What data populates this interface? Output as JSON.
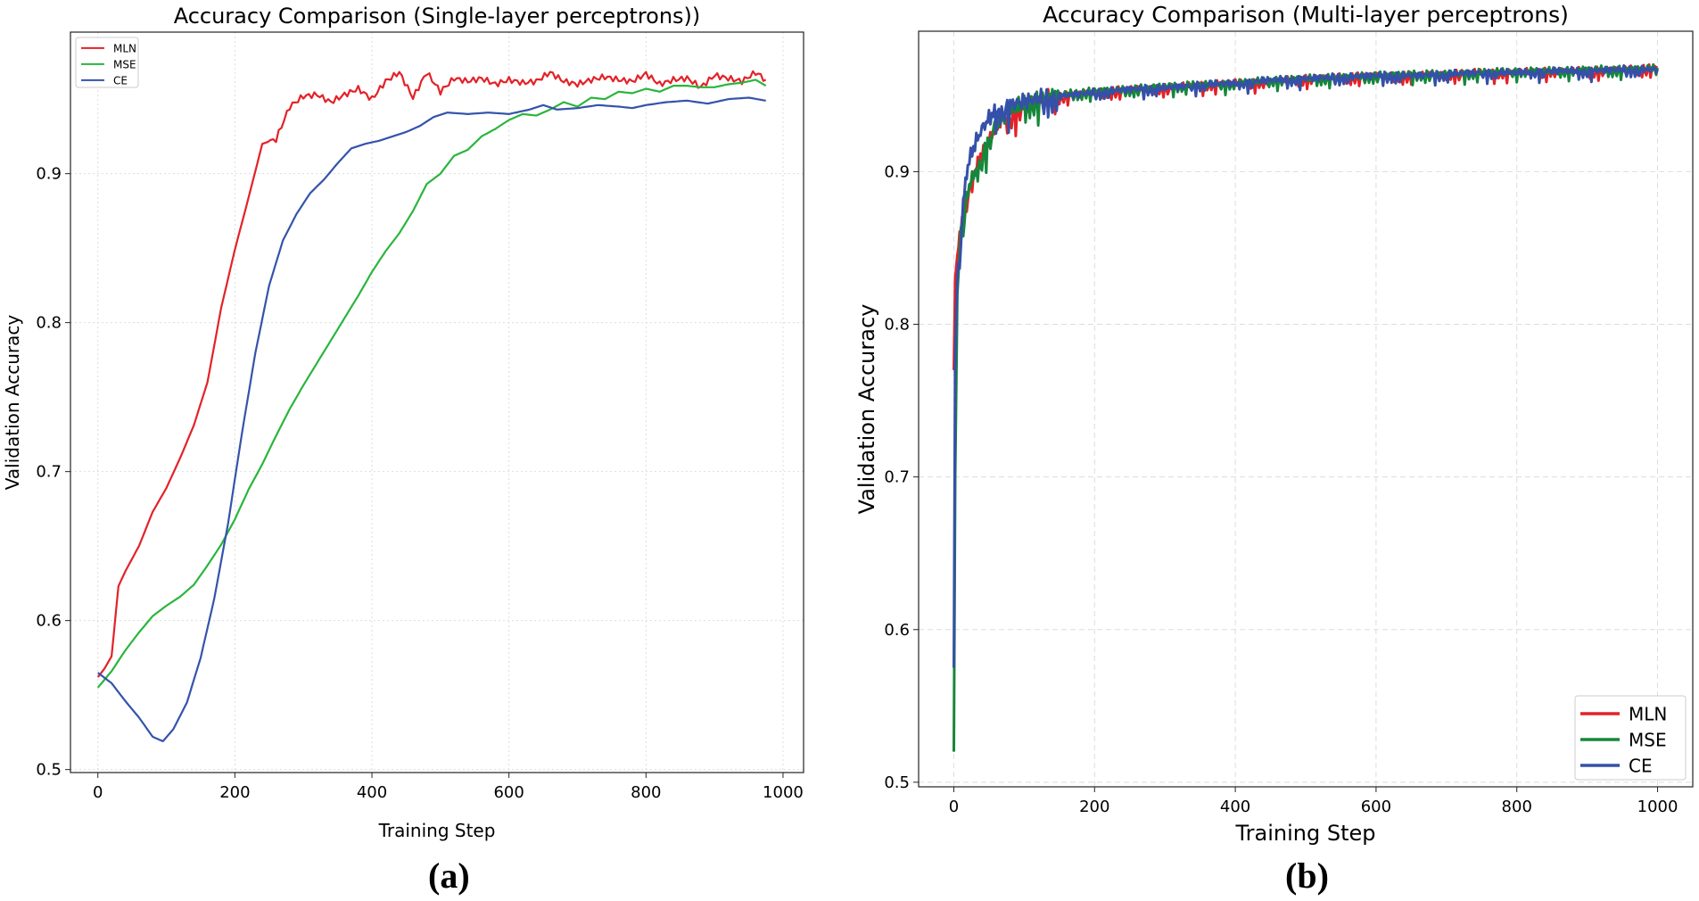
{
  "captions": {
    "a": "(a)",
    "b": "(b)"
  },
  "chart_data": [
    {
      "type": "line",
      "title": "Accuracy Comparison (Single-layer perceptrons))",
      "xlabel": "Training Step",
      "ylabel": "Validation Accuracy",
      "xlim": [
        -40,
        1030
      ],
      "ylim": [
        0.498,
        0.995
      ],
      "xticks": [
        0,
        200,
        400,
        600,
        800,
        1000
      ],
      "yticks": [
        0.5,
        0.6,
        0.7,
        0.8,
        0.9
      ],
      "grid": true,
      "legend_position": "top-left",
      "series": [
        {
          "name": "MLN",
          "color": "#e32228",
          "x": [
            0,
            10,
            20,
            30,
            40,
            60,
            80,
            100,
            120,
            140,
            160,
            180,
            200,
            220,
            240,
            260,
            280,
            300,
            320,
            340,
            360,
            380,
            400,
            420,
            440,
            460,
            480,
            500,
            520,
            540,
            560,
            580,
            600,
            620,
            640,
            660,
            680,
            700,
            720,
            740,
            760,
            780,
            800,
            820,
            840,
            860,
            880,
            900,
            920,
            940,
            960,
            975
          ],
          "y": [
            0.562,
            0.568,
            0.576,
            0.623,
            0.633,
            0.65,
            0.673,
            0.689,
            0.709,
            0.731,
            0.76,
            0.81,
            0.849,
            0.884,
            0.92,
            0.923,
            0.945,
            0.952,
            0.953,
            0.948,
            0.953,
            0.957,
            0.95,
            0.962,
            0.968,
            0.951,
            0.968,
            0.955,
            0.964,
            0.962,
            0.964,
            0.96,
            0.963,
            0.961,
            0.962,
            0.968,
            0.962,
            0.96,
            0.963,
            0.965,
            0.963,
            0.962,
            0.967,
            0.96,
            0.963,
            0.964,
            0.958,
            0.966,
            0.964,
            0.962,
            0.968,
            0.963
          ]
        },
        {
          "name": "MSE",
          "color": "#2ab53c",
          "x": [
            0,
            20,
            40,
            60,
            80,
            100,
            120,
            140,
            160,
            180,
            200,
            220,
            240,
            260,
            280,
            300,
            320,
            340,
            360,
            380,
            400,
            420,
            440,
            460,
            480,
            500,
            520,
            540,
            560,
            580,
            600,
            620,
            640,
            660,
            680,
            700,
            720,
            740,
            760,
            780,
            800,
            820,
            840,
            860,
            880,
            900,
            920,
            940,
            960,
            975
          ],
          "y": [
            0.555,
            0.566,
            0.58,
            0.592,
            0.603,
            0.61,
            0.616,
            0.624,
            0.637,
            0.651,
            0.668,
            0.688,
            0.705,
            0.724,
            0.742,
            0.758,
            0.773,
            0.788,
            0.803,
            0.818,
            0.834,
            0.848,
            0.86,
            0.875,
            0.893,
            0.9,
            0.912,
            0.916,
            0.925,
            0.93,
            0.936,
            0.94,
            0.939,
            0.943,
            0.948,
            0.945,
            0.951,
            0.95,
            0.955,
            0.954,
            0.957,
            0.955,
            0.959,
            0.959,
            0.958,
            0.958,
            0.96,
            0.961,
            0.963,
            0.959
          ]
        },
        {
          "name": "CE",
          "color": "#3553ab",
          "x": [
            0,
            20,
            40,
            60,
            80,
            95,
            110,
            130,
            150,
            170,
            190,
            210,
            230,
            250,
            270,
            290,
            310,
            330,
            350,
            370,
            390,
            410,
            430,
            450,
            470,
            490,
            510,
            540,
            570,
            600,
            630,
            650,
            670,
            700,
            730,
            760,
            780,
            800,
            830,
            860,
            890,
            920,
            950,
            975
          ],
          "y": [
            0.565,
            0.558,
            0.546,
            0.535,
            0.522,
            0.519,
            0.527,
            0.545,
            0.575,
            0.615,
            0.665,
            0.725,
            0.78,
            0.825,
            0.855,
            0.873,
            0.887,
            0.896,
            0.907,
            0.917,
            0.92,
            0.922,
            0.925,
            0.928,
            0.932,
            0.938,
            0.941,
            0.94,
            0.941,
            0.94,
            0.943,
            0.946,
            0.943,
            0.944,
            0.946,
            0.945,
            0.944,
            0.946,
            0.948,
            0.949,
            0.947,
            0.95,
            0.951,
            0.949
          ]
        }
      ]
    },
    {
      "type": "line",
      "title": "Accuracy Comparison (Multi-layer perceptrons)",
      "xlabel": "Training Step",
      "ylabel": "Validation Accuracy",
      "xlim": [
        -50,
        1050
      ],
      "ylim": [
        0.497,
        0.992
      ],
      "xticks": [
        0,
        200,
        400,
        600,
        800,
        1000
      ],
      "yticks": [
        0.5,
        0.6,
        0.7,
        0.8,
        0.9
      ],
      "grid": true,
      "legend_position": "bottom-right",
      "series": [
        {
          "name": "MLN",
          "color": "#e32228",
          "x": [
            0,
            2,
            5,
            10,
            15,
            20,
            30,
            40,
            50,
            60,
            80,
            100,
            130,
            160,
            200,
            250,
            300,
            350,
            400,
            450,
            500,
            550,
            600,
            650,
            700,
            750,
            800,
            850,
            900,
            950,
            1000
          ],
          "y": [
            0.77,
            0.83,
            0.845,
            0.86,
            0.875,
            0.89,
            0.9,
            0.912,
            0.92,
            0.93,
            0.938,
            0.944,
            0.948,
            0.95,
            0.952,
            0.954,
            0.955,
            0.957,
            0.958,
            0.959,
            0.961,
            0.962,
            0.963,
            0.963,
            0.964,
            0.965,
            0.965,
            0.966,
            0.966,
            0.967,
            0.968
          ]
        },
        {
          "name": "MSE",
          "color": "#16873a",
          "x": [
            0,
            2,
            5,
            10,
            15,
            20,
            30,
            40,
            50,
            60,
            80,
            100,
            130,
            160,
            200,
            250,
            300,
            350,
            400,
            450,
            500,
            550,
            600,
            650,
            700,
            750,
            800,
            850,
            900,
            950,
            1000
          ],
          "y": [
            0.52,
            0.7,
            0.82,
            0.86,
            0.875,
            0.888,
            0.9,
            0.91,
            0.922,
            0.932,
            0.94,
            0.945,
            0.949,
            0.951,
            0.953,
            0.954,
            0.956,
            0.957,
            0.958,
            0.96,
            0.961,
            0.962,
            0.963,
            0.964,
            0.964,
            0.965,
            0.966,
            0.966,
            0.967,
            0.967,
            0.968
          ]
        },
        {
          "name": "CE",
          "color": "#3550a8",
          "x": [
            0,
            2,
            5,
            10,
            15,
            20,
            30,
            40,
            50,
            60,
            80,
            100,
            130,
            160,
            200,
            250,
            300,
            350,
            400,
            450,
            500,
            550,
            600,
            650,
            700,
            750,
            800,
            850,
            900,
            950,
            1000
          ],
          "y": [
            0.575,
            0.78,
            0.83,
            0.86,
            0.89,
            0.905,
            0.918,
            0.928,
            0.935,
            0.94,
            0.944,
            0.946,
            0.949,
            0.95,
            0.952,
            0.954,
            0.955,
            0.957,
            0.958,
            0.96,
            0.961,
            0.962,
            0.963,
            0.963,
            0.964,
            0.965,
            0.965,
            0.966,
            0.966,
            0.967,
            0.967
          ]
        }
      ]
    }
  ]
}
